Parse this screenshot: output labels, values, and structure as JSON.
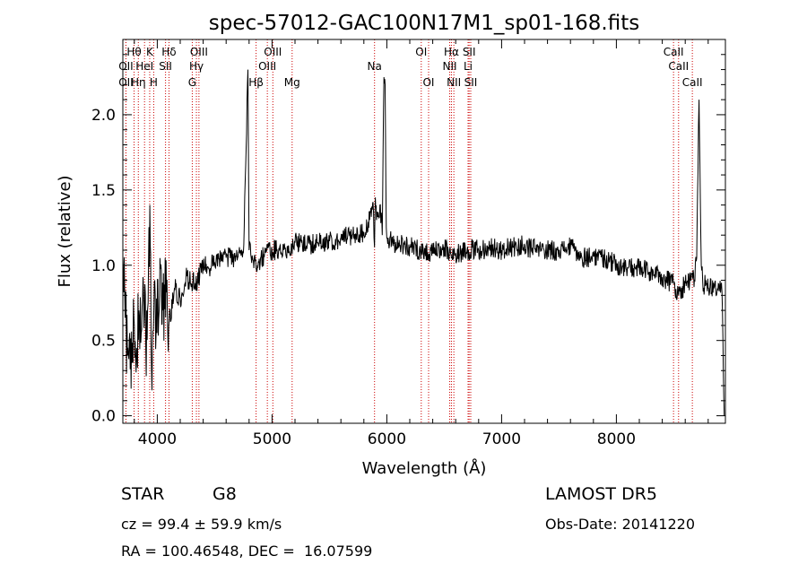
{
  "chart_data": {
    "type": "line",
    "title": "spec-57012-GAC100N17M1_sp01-168.fits",
    "xlabel": "Wavelength (Å)",
    "ylabel": "Flux (relative)",
    "xlim": [
      3700,
      8950
    ],
    "ylim": [
      -0.05,
      2.5
    ],
    "xticks": [
      4000,
      5000,
      6000,
      7000,
      8000
    ],
    "yticks": [
      0.0,
      0.5,
      1.0,
      1.5,
      2.0
    ],
    "xtick_labels": [
      "4000",
      "5000",
      "6000",
      "7000",
      "8000"
    ],
    "ytick_labels": [
      "0.0",
      "0.5",
      "1.0",
      "1.5",
      "2.0"
    ],
    "spectrum_seed": 57012,
    "series": [
      {
        "x": [
          3700,
          3720,
          3740,
          3760,
          3780,
          3800,
          3820,
          3840,
          3860,
          3880,
          3900,
          3920,
          3935,
          3950,
          3970,
          3990,
          4020,
          4050,
          4080,
          4100,
          4150,
          4200,
          4250,
          4300,
          4350,
          4400,
          4450,
          4500,
          4600,
          4700,
          4750,
          4790,
          4800,
          4830,
          4861,
          4900,
          5000,
          5100,
          5200,
          5300,
          5400,
          5500,
          5600,
          5700,
          5800,
          5850,
          5880,
          5893,
          5900,
          5910,
          5920,
          5940,
          5960,
          5975,
          5985,
          5995,
          6000,
          6050,
          6100,
          6200,
          6300,
          6400,
          6500,
          6563,
          6600,
          6700,
          6800,
          6900,
          7000,
          7100,
          7200,
          7300,
          7400,
          7500,
          7600,
          7700,
          7800,
          7900,
          8000,
          8100,
          8200,
          8300,
          8400,
          8500,
          8542,
          8600,
          8650,
          8680,
          8700,
          8720,
          8740,
          8760,
          8780,
          8800,
          8850,
          8900,
          8920,
          8940
        ],
        "y": [
          1.05,
          0.65,
          0.4,
          0.55,
          0.35,
          0.6,
          0.45,
          0.7,
          0.55,
          0.85,
          0.45,
          0.75,
          1.4,
          0.3,
          0.7,
          0.55,
          0.8,
          0.7,
          0.82,
          0.6,
          0.85,
          0.78,
          0.92,
          0.88,
          0.9,
          1.0,
          0.98,
          1.02,
          1.05,
          1.05,
          1.08,
          2.3,
          1.1,
          1.05,
          0.98,
          1.05,
          1.1,
          1.1,
          1.15,
          1.13,
          1.15,
          1.16,
          1.18,
          1.2,
          1.22,
          1.3,
          1.42,
          1.12,
          1.45,
          1.3,
          1.32,
          1.4,
          1.2,
          2.25,
          2.2,
          1.25,
          1.18,
          1.15,
          1.15,
          1.12,
          1.1,
          1.08,
          1.12,
          1.05,
          1.08,
          1.1,
          1.1,
          1.12,
          1.1,
          1.12,
          1.13,
          1.1,
          1.1,
          1.1,
          1.12,
          1.05,
          1.06,
          1.05,
          1.0,
          0.98,
          0.98,
          0.95,
          0.92,
          0.88,
          0.8,
          0.88,
          0.9,
          0.9,
          1.05,
          2.1,
          1.0,
          0.85,
          0.9,
          0.85,
          0.85,
          0.85,
          0.82,
          0.0
        ]
      }
    ],
    "lines": [
      {
        "name": "OII",
        "wl": 3727,
        "row": 2
      },
      {
        "name": "OII",
        "wl": 3727,
        "row": 3
      },
      {
        "name": "Hθ",
        "wl": 3798,
        "row": 1
      },
      {
        "name": "Hη",
        "wl": 3835,
        "row": 3
      },
      {
        "name": "HeI",
        "wl": 3889,
        "row": 2
      },
      {
        "name": "K",
        "wl": 3934,
        "row": 1
      },
      {
        "name": "H",
        "wl": 3969,
        "row": 3
      },
      {
        "name": "Hδ",
        "wl": 4102,
        "row": 1
      },
      {
        "name": "SII",
        "wl": 4072,
        "row": 2
      },
      {
        "name": "OIII",
        "wl": 4363,
        "row": 1
      },
      {
        "name": "Hγ",
        "wl": 4341,
        "row": 2
      },
      {
        "name": "G",
        "wl": 4305,
        "row": 3
      },
      {
        "name": "Hβ",
        "wl": 4861,
        "row": 3
      },
      {
        "name": "OIII",
        "wl": 4959,
        "row": 2
      },
      {
        "name": "OIII",
        "wl": 5007,
        "row": 1
      },
      {
        "name": "Mg",
        "wl": 5175,
        "row": 3
      },
      {
        "name": "Na",
        "wl": 5893,
        "row": 2
      },
      {
        "name": "OI",
        "wl": 6300,
        "row": 1
      },
      {
        "name": "OI",
        "wl": 6364,
        "row": 3
      },
      {
        "name": "Hα",
        "wl": 6563,
        "row": 1
      },
      {
        "name": "NII",
        "wl": 6548,
        "row": 2
      },
      {
        "name": "NII",
        "wl": 6584,
        "row": 3
      },
      {
        "name": "SII",
        "wl": 6717,
        "row": 1
      },
      {
        "name": "Li",
        "wl": 6708,
        "row": 2
      },
      {
        "name": "SII",
        "wl": 6731,
        "row": 3
      },
      {
        "name": "CaII",
        "wl": 8498,
        "row": 1
      },
      {
        "name": "CaII",
        "wl": 8542,
        "row": 2
      },
      {
        "name": "CaII",
        "wl": 8662,
        "row": 3
      }
    ],
    "line_color": "#cc0000",
    "spectrum_color": "#000000"
  },
  "info": {
    "object_type": "STAR",
    "subclass": "G8",
    "survey": "LAMOST DR5",
    "redshift": "cz = 99.4 ± 59.9 km/s",
    "obs_date": "Obs-Date: 20141220",
    "coords": "RA = 100.46548, DEC =  16.07599"
  }
}
